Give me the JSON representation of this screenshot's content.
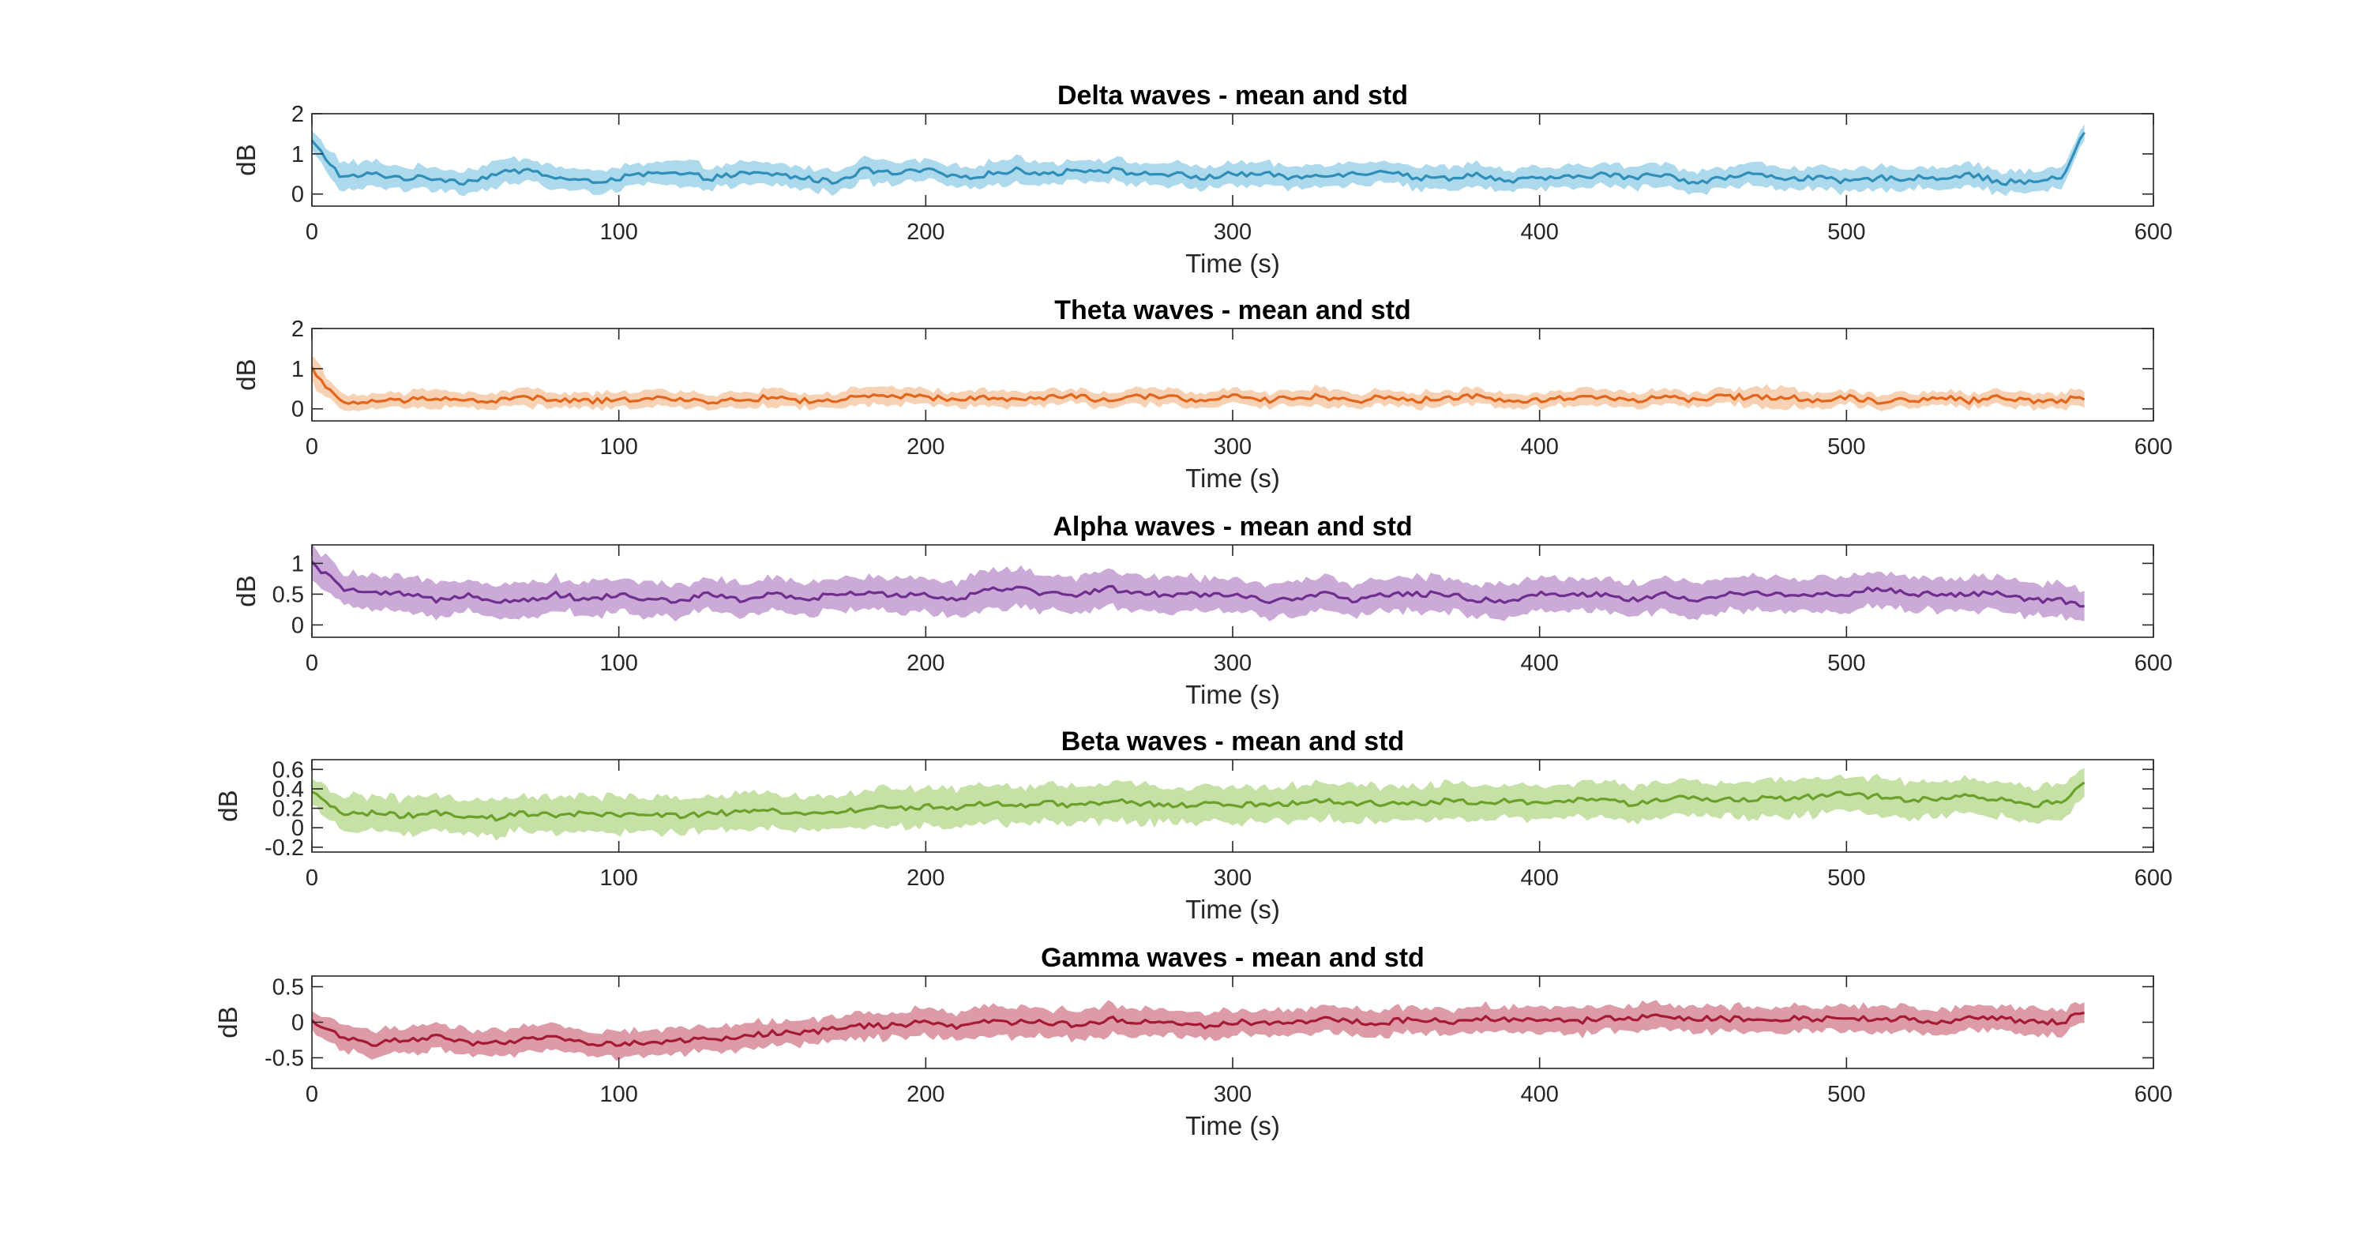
{
  "chart_data": [
    {
      "type": "line",
      "title": "Delta waves - mean and std",
      "xlabel": "Time (s)",
      "ylabel": "dB",
      "xlim": [
        0,
        600
      ],
      "ylim": [
        -0.3,
        2
      ],
      "xticks": [
        "0",
        "100",
        "200",
        "300",
        "400",
        "500",
        "600"
      ],
      "yticks": [
        "0",
        "1",
        "2"
      ],
      "color": "#2f8fb8",
      "band_color": "#9fd2ea",
      "grid": false,
      "series": [
        {
          "x": [
            0,
            10,
            20,
            30,
            40,
            50,
            60,
            70,
            80,
            90,
            100,
            110,
            120,
            130,
            140,
            150,
            160,
            170,
            180,
            190,
            200,
            210,
            220,
            230,
            240,
            250,
            260,
            270,
            280,
            290,
            300,
            310,
            320,
            330,
            340,
            350,
            360,
            370,
            380,
            390,
            400,
            410,
            420,
            430,
            440,
            450,
            460,
            470,
            480,
            490,
            500,
            510,
            520,
            530,
            540,
            550,
            560,
            570,
            578
          ],
          "mean": [
            1.3,
            0.4,
            0.5,
            0.4,
            0.4,
            0.3,
            0.5,
            0.6,
            0.4,
            0.3,
            0.4,
            0.5,
            0.5,
            0.4,
            0.5,
            0.5,
            0.4,
            0.3,
            0.6,
            0.5,
            0.6,
            0.4,
            0.5,
            0.6,
            0.5,
            0.6,
            0.6,
            0.5,
            0.5,
            0.4,
            0.5,
            0.5,
            0.4,
            0.5,
            0.5,
            0.6,
            0.4,
            0.4,
            0.5,
            0.3,
            0.4,
            0.4,
            0.5,
            0.4,
            0.5,
            0.3,
            0.4,
            0.5,
            0.4,
            0.4,
            0.3,
            0.4,
            0.4,
            0.4,
            0.5,
            0.3,
            0.3,
            0.4,
            1.6
          ],
          "std": [
            0.3,
            0.4,
            0.35,
            0.3,
            0.3,
            0.3,
            0.35,
            0.35,
            0.3,
            0.3,
            0.3,
            0.3,
            0.35,
            0.3,
            0.3,
            0.3,
            0.3,
            0.3,
            0.35,
            0.3,
            0.3,
            0.3,
            0.3,
            0.35,
            0.3,
            0.3,
            0.3,
            0.3,
            0.3,
            0.3,
            0.3,
            0.3,
            0.3,
            0.3,
            0.3,
            0.3,
            0.3,
            0.3,
            0.3,
            0.3,
            0.3,
            0.3,
            0.3,
            0.3,
            0.3,
            0.3,
            0.3,
            0.3,
            0.3,
            0.3,
            0.3,
            0.3,
            0.3,
            0.3,
            0.3,
            0.3,
            0.3,
            0.3,
            0.2
          ]
        }
      ]
    },
    {
      "type": "line",
      "title": "Theta waves - mean and std",
      "xlabel": "Time (s)",
      "ylabel": "dB",
      "xlim": [
        0,
        600
      ],
      "ylim": [
        -0.3,
        2
      ],
      "xticks": [
        "0",
        "100",
        "200",
        "300",
        "400",
        "500",
        "600"
      ],
      "yticks": [
        "0",
        "1",
        "2"
      ],
      "color": "#e2651c",
      "band_color": "#f6c9a6",
      "grid": false,
      "series": [
        {
          "x": [
            0,
            10,
            20,
            30,
            40,
            50,
            60,
            70,
            80,
            90,
            100,
            110,
            120,
            130,
            140,
            150,
            160,
            170,
            180,
            190,
            200,
            210,
            220,
            230,
            240,
            250,
            260,
            270,
            280,
            290,
            300,
            310,
            320,
            330,
            340,
            350,
            360,
            370,
            380,
            390,
            400,
            410,
            420,
            430,
            440,
            450,
            460,
            470,
            480,
            490,
            500,
            510,
            520,
            530,
            540,
            550,
            560,
            570,
            578
          ],
          "mean": [
            1.0,
            0.1,
            0.2,
            0.2,
            0.3,
            0.2,
            0.2,
            0.3,
            0.2,
            0.2,
            0.2,
            0.3,
            0.2,
            0.2,
            0.2,
            0.3,
            0.2,
            0.2,
            0.3,
            0.3,
            0.3,
            0.2,
            0.3,
            0.2,
            0.3,
            0.3,
            0.2,
            0.3,
            0.3,
            0.2,
            0.3,
            0.2,
            0.3,
            0.3,
            0.2,
            0.3,
            0.2,
            0.3,
            0.3,
            0.2,
            0.2,
            0.3,
            0.3,
            0.2,
            0.3,
            0.2,
            0.3,
            0.3,
            0.3,
            0.2,
            0.3,
            0.2,
            0.2,
            0.3,
            0.2,
            0.3,
            0.2,
            0.2,
            0.3
          ],
          "std": [
            0.4,
            0.2,
            0.2,
            0.2,
            0.25,
            0.2,
            0.2,
            0.25,
            0.2,
            0.2,
            0.2,
            0.25,
            0.2,
            0.2,
            0.2,
            0.25,
            0.2,
            0.2,
            0.25,
            0.25,
            0.2,
            0.2,
            0.25,
            0.2,
            0.2,
            0.2,
            0.2,
            0.25,
            0.2,
            0.2,
            0.2,
            0.2,
            0.2,
            0.25,
            0.2,
            0.2,
            0.2,
            0.2,
            0.2,
            0.2,
            0.2,
            0.2,
            0.25,
            0.2,
            0.2,
            0.2,
            0.2,
            0.25,
            0.3,
            0.2,
            0.2,
            0.2,
            0.2,
            0.2,
            0.2,
            0.2,
            0.2,
            0.2,
            0.2
          ]
        }
      ]
    },
    {
      "type": "line",
      "title": "Alpha waves - mean and std",
      "xlabel": "Time (s)",
      "ylabel": "dB",
      "xlim": [
        0,
        600
      ],
      "ylim": [
        -0.2,
        1.3
      ],
      "xticks": [
        "0",
        "100",
        "200",
        "300",
        "400",
        "500",
        "600"
      ],
      "yticks": [
        "0",
        "0.5",
        "1"
      ],
      "color": "#6f2f8e",
      "band_color": "#c39bd0",
      "grid": false,
      "series": [
        {
          "x": [
            0,
            10,
            20,
            30,
            40,
            50,
            60,
            70,
            80,
            90,
            100,
            110,
            120,
            130,
            140,
            150,
            160,
            170,
            180,
            190,
            200,
            210,
            220,
            230,
            240,
            250,
            260,
            270,
            280,
            290,
            300,
            310,
            320,
            330,
            340,
            350,
            360,
            370,
            380,
            390,
            400,
            410,
            420,
            430,
            440,
            450,
            460,
            470,
            480,
            490,
            500,
            510,
            520,
            530,
            540,
            550,
            560,
            570,
            578
          ],
          "mean": [
            1.0,
            0.6,
            0.5,
            0.5,
            0.4,
            0.5,
            0.4,
            0.4,
            0.5,
            0.4,
            0.5,
            0.4,
            0.4,
            0.5,
            0.4,
            0.5,
            0.4,
            0.5,
            0.5,
            0.5,
            0.5,
            0.4,
            0.6,
            0.6,
            0.5,
            0.5,
            0.6,
            0.5,
            0.5,
            0.5,
            0.5,
            0.4,
            0.4,
            0.5,
            0.4,
            0.5,
            0.5,
            0.5,
            0.4,
            0.4,
            0.5,
            0.5,
            0.5,
            0.4,
            0.5,
            0.4,
            0.5,
            0.5,
            0.5,
            0.5,
            0.5,
            0.6,
            0.5,
            0.5,
            0.5,
            0.5,
            0.4,
            0.4,
            0.3
          ],
          "std": [
            0.3,
            0.3,
            0.3,
            0.3,
            0.3,
            0.3,
            0.3,
            0.3,
            0.3,
            0.3,
            0.3,
            0.3,
            0.3,
            0.3,
            0.3,
            0.3,
            0.3,
            0.3,
            0.3,
            0.3,
            0.3,
            0.3,
            0.35,
            0.35,
            0.3,
            0.3,
            0.35,
            0.3,
            0.3,
            0.3,
            0.3,
            0.3,
            0.3,
            0.3,
            0.3,
            0.3,
            0.3,
            0.3,
            0.3,
            0.3,
            0.3,
            0.3,
            0.3,
            0.3,
            0.3,
            0.3,
            0.3,
            0.3,
            0.3,
            0.3,
            0.3,
            0.3,
            0.3,
            0.3,
            0.3,
            0.3,
            0.3,
            0.3,
            0.25
          ]
        }
      ]
    },
    {
      "type": "line",
      "title": "Beta waves - mean and std",
      "xlabel": "Time (s)",
      "ylabel": "dB",
      "xlim": [
        0,
        600
      ],
      "ylim": [
        -0.25,
        0.7
      ],
      "xticks": [
        "0",
        "100",
        "200",
        "300",
        "400",
        "500",
        "600"
      ],
      "yticks": [
        "-0.2",
        "0",
        "0.2",
        "0.4",
        "0.6"
      ],
      "color": "#6ba12a",
      "band_color": "#bcdc97",
      "grid": false,
      "series": [
        {
          "x": [
            0,
            10,
            20,
            30,
            40,
            50,
            60,
            70,
            80,
            90,
            100,
            110,
            120,
            130,
            140,
            150,
            160,
            170,
            180,
            190,
            200,
            210,
            220,
            230,
            240,
            250,
            260,
            270,
            280,
            290,
            300,
            310,
            320,
            330,
            340,
            350,
            360,
            370,
            380,
            390,
            400,
            410,
            420,
            430,
            440,
            450,
            460,
            470,
            480,
            490,
            500,
            510,
            520,
            530,
            540,
            550,
            560,
            570,
            578
          ],
          "mean": [
            0.35,
            0.15,
            0.15,
            0.12,
            0.15,
            0.1,
            0.1,
            0.15,
            0.12,
            0.15,
            0.12,
            0.15,
            0.12,
            0.15,
            0.15,
            0.18,
            0.15,
            0.15,
            0.2,
            0.2,
            0.22,
            0.2,
            0.25,
            0.22,
            0.25,
            0.22,
            0.28,
            0.25,
            0.22,
            0.25,
            0.22,
            0.25,
            0.25,
            0.28,
            0.25,
            0.25,
            0.25,
            0.28,
            0.25,
            0.28,
            0.25,
            0.28,
            0.28,
            0.25,
            0.3,
            0.3,
            0.28,
            0.3,
            0.3,
            0.32,
            0.35,
            0.32,
            0.28,
            0.3,
            0.32,
            0.3,
            0.22,
            0.28,
            0.45
          ],
          "std": [
            0.15,
            0.2,
            0.2,
            0.2,
            0.2,
            0.2,
            0.2,
            0.2,
            0.2,
            0.2,
            0.2,
            0.2,
            0.2,
            0.2,
            0.2,
            0.2,
            0.2,
            0.2,
            0.2,
            0.22,
            0.22,
            0.22,
            0.22,
            0.22,
            0.22,
            0.22,
            0.22,
            0.22,
            0.2,
            0.2,
            0.2,
            0.2,
            0.2,
            0.2,
            0.2,
            0.2,
            0.2,
            0.2,
            0.2,
            0.2,
            0.2,
            0.2,
            0.2,
            0.2,
            0.2,
            0.2,
            0.2,
            0.2,
            0.2,
            0.2,
            0.2,
            0.2,
            0.2,
            0.2,
            0.2,
            0.2,
            0.2,
            0.2,
            0.15
          ]
        }
      ]
    },
    {
      "type": "line",
      "title": "Gamma waves - mean and std",
      "xlabel": "Time (s)",
      "ylabel": "dB",
      "xlim": [
        0,
        600
      ],
      "ylim": [
        -0.65,
        0.65
      ],
      "xticks": [
        "0",
        "100",
        "200",
        "300",
        "400",
        "500",
        "600"
      ],
      "yticks": [
        "-0.5",
        "0",
        "0.5"
      ],
      "color": "#a51b35",
      "band_color": "#d68a98",
      "grid": false,
      "series": [
        {
          "x": [
            0,
            10,
            20,
            30,
            40,
            50,
            60,
            70,
            80,
            90,
            100,
            110,
            120,
            130,
            140,
            150,
            160,
            170,
            180,
            190,
            200,
            210,
            220,
            230,
            240,
            250,
            260,
            270,
            280,
            290,
            300,
            310,
            320,
            330,
            340,
            350,
            360,
            370,
            380,
            390,
            400,
            410,
            420,
            430,
            440,
            450,
            460,
            470,
            480,
            490,
            500,
            510,
            520,
            530,
            540,
            550,
            560,
            570,
            578
          ],
          "mean": [
            0.0,
            -0.2,
            -0.3,
            -0.25,
            -0.2,
            -0.3,
            -0.3,
            -0.25,
            -0.2,
            -0.3,
            -0.3,
            -0.3,
            -0.25,
            -0.25,
            -0.2,
            -0.15,
            -0.15,
            -0.1,
            -0.05,
            -0.05,
            0.0,
            -0.05,
            0.0,
            0.0,
            0.0,
            -0.05,
            0.05,
            0.0,
            0.0,
            -0.05,
            0.0,
            0.0,
            0.0,
            0.05,
            0.0,
            0.0,
            0.05,
            0.0,
            0.05,
            0.05,
            0.05,
            0.0,
            0.05,
            0.05,
            0.1,
            0.05,
            0.05,
            0.05,
            0.05,
            0.05,
            0.05,
            0.05,
            0.05,
            0.0,
            0.05,
            0.05,
            0.0,
            0.0,
            0.15
          ],
          "std": [
            0.15,
            0.2,
            0.2,
            0.2,
            0.2,
            0.2,
            0.2,
            0.2,
            0.2,
            0.2,
            0.2,
            0.2,
            0.2,
            0.2,
            0.2,
            0.2,
            0.2,
            0.2,
            0.2,
            0.2,
            0.22,
            0.22,
            0.25,
            0.22,
            0.22,
            0.22,
            0.25,
            0.22,
            0.2,
            0.2,
            0.2,
            0.2,
            0.2,
            0.2,
            0.2,
            0.2,
            0.2,
            0.2,
            0.2,
            0.2,
            0.2,
            0.2,
            0.2,
            0.2,
            0.2,
            0.2,
            0.2,
            0.2,
            0.2,
            0.2,
            0.2,
            0.2,
            0.2,
            0.2,
            0.2,
            0.2,
            0.2,
            0.2,
            0.15
          ]
        }
      ]
    }
  ]
}
